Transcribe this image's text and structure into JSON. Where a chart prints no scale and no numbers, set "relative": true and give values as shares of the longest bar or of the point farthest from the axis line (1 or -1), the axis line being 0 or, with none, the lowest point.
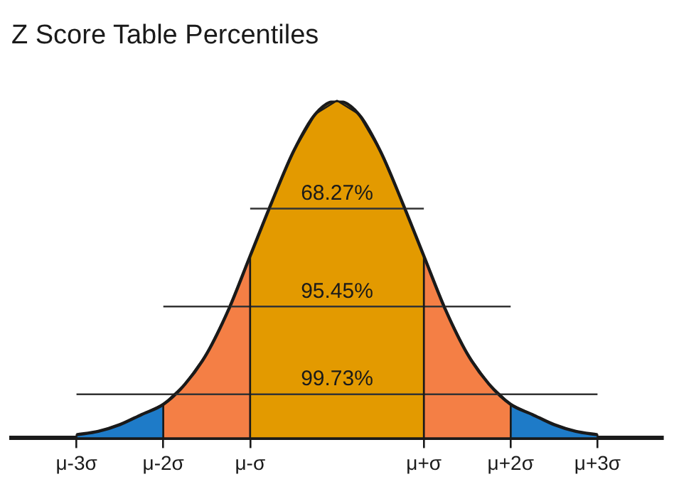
{
  "chart_data": {
    "type": "line",
    "title": "Z Score Table Percentiles",
    "relative": true,
    "categories": [
      null,
      null,
      null,
      "μ-3σ",
      null,
      null,
      null,
      "μ-2σ",
      null,
      null,
      null,
      "μ-σ",
      null,
      null,
      null,
      null,
      null,
      null,
      null,
      "μ+σ",
      null,
      null,
      null,
      "μ+2σ",
      null,
      null,
      null,
      "μ+3σ",
      null,
      null,
      null
    ],
    "series": [
      {
        "type": "line",
        "color": "#333333",
        "values": [
          null,
          null,
          null,
          null,
          null,
          null,
          null,
          null,
          null,
          null,
          null,
          0.68,
          null,
          null,
          null,
          null,
          null,
          null,
          null,
          0.68,
          null,
          null,
          null,
          null,
          null,
          null,
          null,
          null,
          null,
          null,
          null
        ]
      },
      {
        "type": "line",
        "color": "#333333",
        "values": [
          null,
          null,
          null,
          null,
          null,
          null,
          null,
          0.39,
          null,
          null,
          null,
          null,
          null,
          null,
          null,
          null,
          null,
          null,
          null,
          null,
          null,
          null,
          null,
          0.39,
          null,
          null,
          null,
          null,
          null,
          null,
          null
        ]
      },
      {
        "type": "line",
        "color": "#333333",
        "values": [
          null,
          null,
          null,
          0.13,
          null,
          null,
          null,
          null,
          null,
          null,
          null,
          null,
          null,
          null,
          null,
          null,
          null,
          null,
          null,
          null,
          null,
          null,
          null,
          null,
          null,
          null,
          null,
          0.13,
          null,
          null,
          null
        ]
      },
      {
        "type": "line",
        "color": "#1a1a1a",
        "values": [
          null,
          null,
          null,
          0.01,
          0.02,
          0.04,
          0.07,
          0.1,
          0.16,
          0.25,
          0.38,
          0.54,
          0.7,
          0.85,
          0.96,
          1,
          0.96,
          0.85,
          0.7,
          0.54,
          0.38,
          0.25,
          0.16,
          0.1,
          0.07,
          0.04,
          0.02,
          0.01,
          null,
          null,
          null
        ]
      },
      {
        "type": "area",
        "color": "#1e7bc8",
        "values": [
          null,
          null,
          null,
          0.01,
          0.02,
          0.04,
          0.07,
          0.1,
          null,
          null,
          null,
          null,
          null,
          null,
          null,
          null,
          null,
          null,
          null,
          null,
          null,
          null,
          null,
          null,
          null,
          null,
          null,
          null,
          null,
          null,
          null
        ]
      },
      {
        "type": "area",
        "color": "#f47f45",
        "values": [
          null,
          null,
          null,
          null,
          null,
          null,
          null,
          0.1,
          0.16,
          0.25,
          0.38,
          0.54,
          null,
          null,
          null,
          null,
          null,
          null,
          null,
          null,
          null,
          null,
          null,
          null,
          null,
          null,
          null,
          null,
          null,
          null,
          null
        ]
      },
      {
        "type": "area",
        "color": "#e39a00",
        "values": [
          null,
          null,
          null,
          null,
          null,
          null,
          null,
          null,
          null,
          null,
          null,
          0.54,
          0.7,
          0.85,
          0.96,
          1,
          0.96,
          0.85,
          0.7,
          0.54,
          null,
          null,
          null,
          null,
          null,
          null,
          null,
          null,
          null,
          null,
          null
        ]
      },
      {
        "type": "area",
        "color": "#f47f45",
        "values": [
          null,
          null,
          null,
          null,
          null,
          null,
          null,
          null,
          null,
          null,
          null,
          null,
          null,
          null,
          null,
          null,
          null,
          null,
          null,
          0.54,
          0.38,
          0.25,
          0.16,
          0.1,
          null,
          null,
          null,
          null,
          null,
          null,
          null
        ]
      },
      {
        "type": "area",
        "color": "#1e7bc8",
        "values": [
          null,
          null,
          null,
          null,
          null,
          null,
          null,
          null,
          null,
          null,
          null,
          null,
          null,
          null,
          null,
          null,
          null,
          null,
          null,
          null,
          null,
          null,
          null,
          0.1,
          0.07,
          0.04,
          0.02,
          0.01,
          null,
          null,
          null
        ]
      }
    ],
    "annotations": [
      {
        "text": "68.27%",
        "y": 0.68
      },
      {
        "text": "95.45%",
        "y": 0.39
      },
      {
        "text": "99.73%",
        "y": 0.13
      }
    ],
    "legend": false
  }
}
